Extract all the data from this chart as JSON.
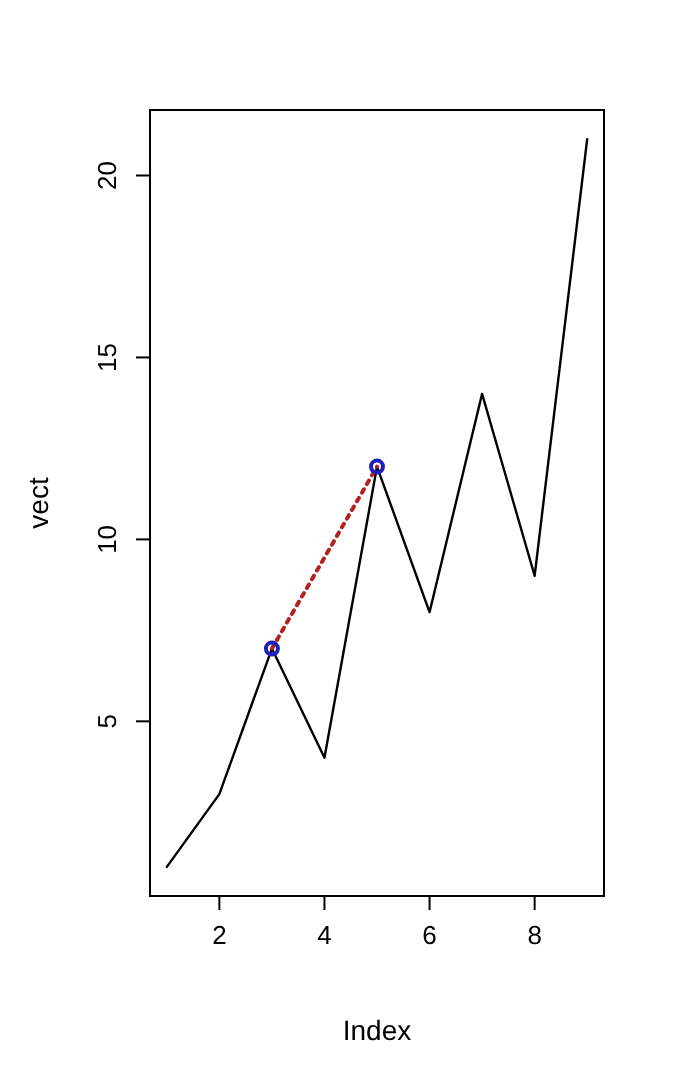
{
  "chart_data": {
    "type": "line",
    "xlabel": "Index",
    "ylabel": "vect",
    "xlim": [
      0.68,
      9.32
    ],
    "ylim": [
      0.2,
      21.8
    ],
    "xticks": [
      2,
      4,
      6,
      8
    ],
    "yticks": [
      5,
      10,
      15,
      20
    ],
    "grid": false,
    "series": [
      {
        "color": "#000000",
        "x": [
          1,
          2,
          3,
          4,
          5,
          6,
          7,
          8,
          9
        ],
        "values": [
          1,
          3,
          7,
          4,
          12,
          8,
          14,
          9,
          21
        ],
        "line_style": "solid",
        "marker": "none"
      },
      {
        "type": "line",
        "color": "#b22222",
        "x": [
          3,
          5
        ],
        "values": [
          7,
          12
        ],
        "line_style": "dotted",
        "marker": "none"
      },
      {
        "type": "scatter",
        "color": "#1f1fbf",
        "x": [
          3,
          5
        ],
        "values": [
          7,
          12
        ],
        "marker": "circle"
      }
    ]
  }
}
